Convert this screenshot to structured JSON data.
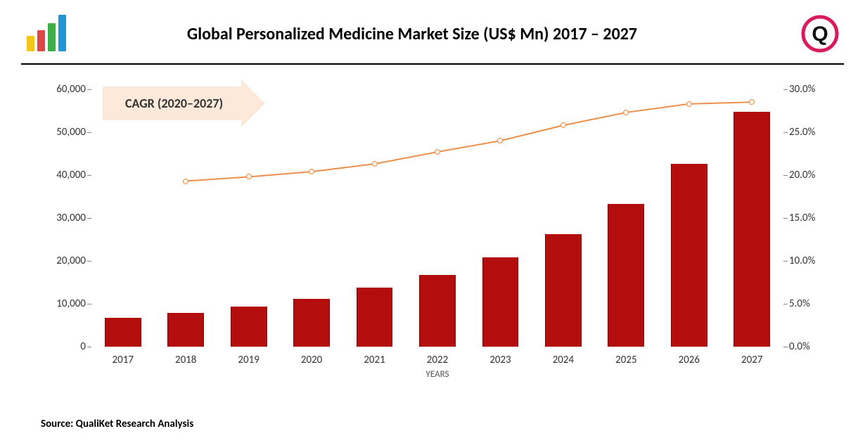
{
  "title": "Global Personalized Medicine Market Size (US$ Mn) 2017 – 2027",
  "cagr_label": "CAGR (2020–2027)",
  "source": "Source: QualiKet Research Analysis",
  "xaxis_title": "YEARS",
  "logo_left": {
    "bars": [
      {
        "color": "#f5c518",
        "height": 22
      },
      {
        "color": "#e04646",
        "height": 30
      },
      {
        "color": "#3fae49",
        "height": 40
      },
      {
        "color": "#2196d6",
        "height": 52
      }
    ]
  },
  "logo_right": {
    "ring_color": "#d91c5c",
    "q_color": "#111111"
  },
  "cagr_style": {
    "bg": "#fce9d9",
    "head_border": "#fce9d9"
  },
  "chart": {
    "type": "bar+line",
    "categories": [
      "2017",
      "2018",
      "2019",
      "2020",
      "2021",
      "2022",
      "2023",
      "2024",
      "2025",
      "2026",
      "2027"
    ],
    "bar_values": [
      6700,
      7900,
      9300,
      11200,
      13700,
      16800,
      20800,
      26200,
      33300,
      42700,
      54800
    ],
    "bar_color": "#b30d0d",
    "bar_width_pct": 58,
    "line_values": [
      null,
      19.3,
      19.8,
      20.4,
      21.3,
      22.7,
      24.0,
      25.8,
      27.3,
      28.3,
      28.5
    ],
    "line_color": "#ec8f4a",
    "line_width": 2,
    "marker_border": "#ec8f4a",
    "marker_fill": "#fef2e8",
    "y_left": {
      "min": 0,
      "max": 60000,
      "step": 10000,
      "labels": [
        "0",
        "10,000",
        "20,000",
        "30,000",
        "40,000",
        "50,000",
        "60,000"
      ]
    },
    "y_right": {
      "min": 0,
      "max": 30,
      "step": 5,
      "labels": [
        "0.0%",
        "5.0%",
        "10.0%",
        "15.0%",
        "20.0%",
        "25.0%",
        "30.0%"
      ]
    },
    "background": "#ffffff",
    "tick_color": "#888888",
    "label_fontsize": 15
  }
}
